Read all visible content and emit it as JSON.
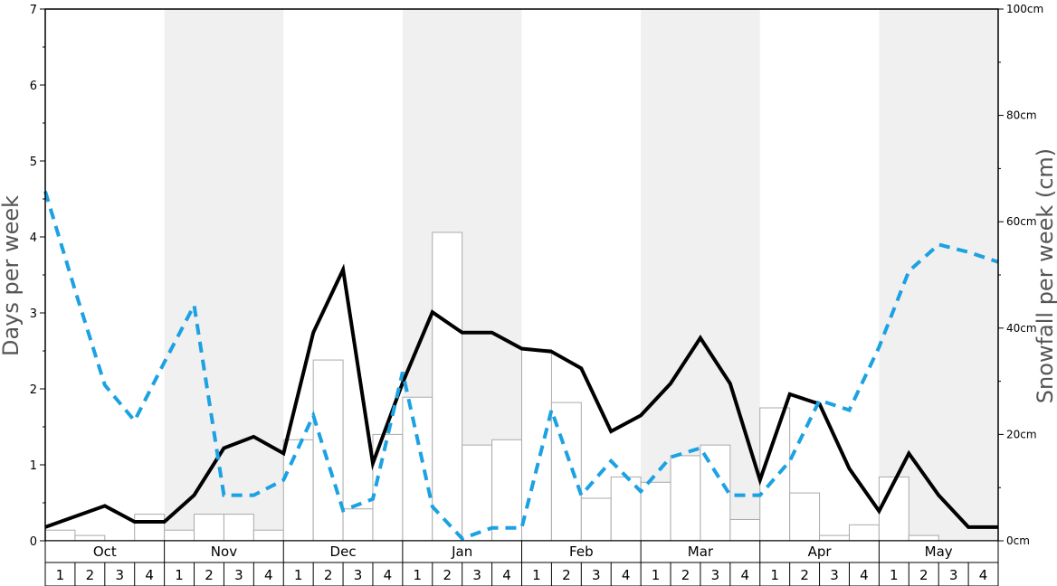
{
  "chart_data": {
    "type": "bar",
    "ylabel": "Days per week",
    "y2label": "Snowfall per week (cm)",
    "ylim": [
      0,
      7
    ],
    "y2lim": [
      0,
      100
    ],
    "yticks": [
      "0",
      "1",
      "2",
      "3",
      "4",
      "5",
      "6",
      "7"
    ],
    "y2ticks": [
      "0cm",
      "20cm",
      "40cm",
      "60cm",
      "80cm",
      "100cm"
    ],
    "months": [
      "Oct",
      "Nov",
      "Dec",
      "Jan",
      "Feb",
      "Mar",
      "Apr",
      "May"
    ],
    "weeks": [
      "1",
      "2",
      "3",
      "4"
    ],
    "shaded_months": [
      "Nov",
      "Jan",
      "Mar",
      "May"
    ],
    "series": [
      {
        "kind": "bar",
        "axis": "right",
        "color": "#ffffff",
        "values": [
          2,
          1,
          0,
          5,
          2,
          5,
          5,
          2,
          19,
          34,
          6,
          20,
          27,
          58,
          18,
          19,
          36,
          26,
          8,
          12,
          11,
          16,
          18,
          4,
          25,
          9,
          1,
          3,
          12,
          1,
          0,
          0
        ]
      },
      {
        "kind": "line",
        "axis": "left",
        "color": "#000000",
        "style": "solid",
        "values": [
          0.18,
          0.32,
          0.46,
          0.25,
          0.25,
          0.6,
          1.22,
          1.37,
          1.15,
          2.74,
          3.57,
          1.02,
          2.08,
          3.01,
          2.74,
          2.74,
          2.53,
          2.49,
          2.27,
          1.44,
          1.65,
          2.07,
          2.67,
          2.07,
          0.8,
          1.93,
          1.8,
          0.95,
          0.39,
          1.15,
          0.6,
          0.18,
          0.18
        ]
      },
      {
        "kind": "line",
        "axis": "left",
        "color": "#1ca1e2",
        "style": "dashed",
        "values": [
          4.6,
          3.3,
          2.05,
          1.58,
          2.35,
          3.1,
          0.6,
          0.6,
          0.8,
          1.65,
          0.4,
          0.55,
          2.22,
          0.45,
          0.03,
          0.17,
          0.17,
          1.72,
          0.6,
          1.05,
          0.65,
          1.1,
          1.22,
          0.6,
          0.6,
          1.05,
          1.85,
          1.72,
          2.55,
          3.55,
          3.9,
          3.8,
          3.67
        ]
      }
    ]
  }
}
